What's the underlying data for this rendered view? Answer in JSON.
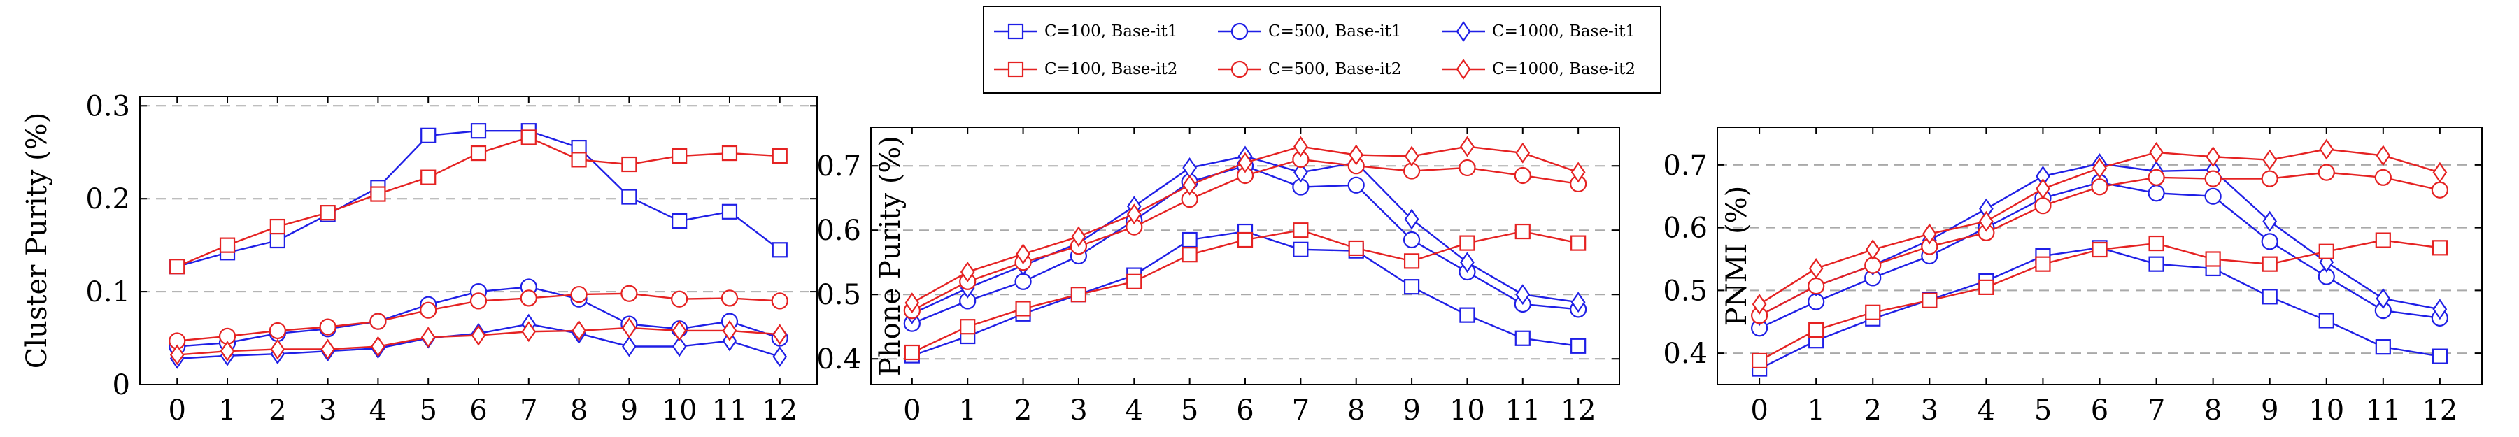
{
  "colors": {
    "blue": "#1f1fe6",
    "red": "#e52222",
    "grid": "#a9a9a9"
  },
  "legend": [
    {
      "label": "C=100, Base-it1",
      "color": "blue",
      "marker": "square"
    },
    {
      "label": "C=500, Base-it1",
      "color": "blue",
      "marker": "circle"
    },
    {
      "label": "C=1000, Base-it1",
      "color": "blue",
      "marker": "diamond"
    },
    {
      "label": "C=100, Base-it2",
      "color": "red",
      "marker": "square"
    },
    {
      "label": "C=500, Base-it2",
      "color": "red",
      "marker": "circle"
    },
    {
      "label": "C=1000, Base-it2",
      "color": "red",
      "marker": "diamond"
    }
  ],
  "chart_data": [
    {
      "type": "line",
      "ylabel": "Cluster Purity (%)",
      "xlabel": "",
      "x": [
        0,
        1,
        2,
        3,
        4,
        5,
        6,
        7,
        8,
        9,
        10,
        11,
        12
      ],
      "ylim": [
        0,
        0.31
      ],
      "yticks": [
        0,
        0.1,
        0.2,
        0.3
      ],
      "ytick_labels": [
        "0",
        "0.1",
        "0.2",
        "0.3"
      ],
      "grid": "horizontal-dashed",
      "series": [
        {
          "name": "C=100, Base-it1",
          "color": "blue",
          "marker": "square",
          "values": [
            0.127,
            0.142,
            0.155,
            0.183,
            0.212,
            0.268,
            0.273,
            0.273,
            0.255,
            0.202,
            0.176,
            0.186,
            0.145
          ]
        },
        {
          "name": "C=500, Base-it1",
          "color": "blue",
          "marker": "circle",
          "values": [
            0.041,
            0.045,
            0.055,
            0.06,
            0.068,
            0.086,
            0.1,
            0.105,
            0.092,
            0.065,
            0.06,
            0.068,
            0.05
          ]
        },
        {
          "name": "C=1000, Base-it1",
          "color": "blue",
          "marker": "diamond",
          "values": [
            0.028,
            0.031,
            0.033,
            0.036,
            0.039,
            0.05,
            0.055,
            0.065,
            0.055,
            0.041,
            0.041,
            0.047,
            0.03
          ]
        },
        {
          "name": "C=100, Base-it2",
          "color": "red",
          "marker": "square",
          "values": [
            0.127,
            0.15,
            0.17,
            0.185,
            0.205,
            0.223,
            0.249,
            0.266,
            0.242,
            0.237,
            0.246,
            0.249,
            0.246
          ]
        },
        {
          "name": "C=500, Base-it2",
          "color": "red",
          "marker": "circle",
          "values": [
            0.047,
            0.052,
            0.058,
            0.062,
            0.068,
            0.08,
            0.09,
            0.093,
            0.097,
            0.098,
            0.092,
            0.093,
            0.09
          ]
        },
        {
          "name": "C=1000, Base-it2",
          "color": "red",
          "marker": "diamond",
          "values": [
            0.032,
            0.036,
            0.038,
            0.038,
            0.041,
            0.051,
            0.053,
            0.057,
            0.058,
            0.061,
            0.058,
            0.058,
            0.054
          ]
        }
      ]
    },
    {
      "type": "line",
      "ylabel": "Phone Purity (%)",
      "xlabel": "",
      "x": [
        0,
        1,
        2,
        3,
        4,
        5,
        6,
        7,
        8,
        9,
        10,
        11,
        12
      ],
      "ylim": [
        0.36,
        0.76
      ],
      "yticks": [
        0.4,
        0.5,
        0.6,
        0.7
      ],
      "ytick_labels": [
        "0.4",
        "0.5",
        "0.6",
        "0.7"
      ],
      "grid": "horizontal-dashed",
      "series": [
        {
          "name": "C=100, Base-it1",
          "color": "blue",
          "marker": "square",
          "values": [
            0.405,
            0.435,
            0.47,
            0.5,
            0.53,
            0.585,
            0.598,
            0.57,
            0.568,
            0.512,
            0.468,
            0.432,
            0.42
          ]
        },
        {
          "name": "C=500, Base-it1",
          "color": "blue",
          "marker": "circle",
          "values": [
            0.455,
            0.49,
            0.52,
            0.56,
            0.615,
            0.675,
            0.7,
            0.667,
            0.67,
            0.585,
            0.535,
            0.485,
            0.477
          ]
        },
        {
          "name": "C=1000, Base-it1",
          "color": "blue",
          "marker": "diamond",
          "values": [
            0.47,
            0.51,
            0.545,
            0.58,
            0.637,
            0.697,
            0.715,
            0.69,
            0.705,
            0.617,
            0.55,
            0.5,
            0.488
          ]
        },
        {
          "name": "C=100, Base-it2",
          "color": "red",
          "marker": "square",
          "values": [
            0.41,
            0.45,
            0.478,
            0.5,
            0.52,
            0.562,
            0.585,
            0.6,
            0.572,
            0.552,
            0.58,
            0.598,
            0.58
          ]
        },
        {
          "name": "C=500, Base-it2",
          "color": "red",
          "marker": "circle",
          "values": [
            0.475,
            0.52,
            0.55,
            0.575,
            0.605,
            0.648,
            0.685,
            0.71,
            0.7,
            0.692,
            0.697,
            0.685,
            0.672
          ]
        },
        {
          "name": "C=1000, Base-it2",
          "color": "red",
          "marker": "diamond",
          "values": [
            0.487,
            0.535,
            0.563,
            0.59,
            0.625,
            0.67,
            0.705,
            0.73,
            0.717,
            0.715,
            0.73,
            0.72,
            0.69
          ]
        }
      ]
    },
    {
      "type": "line",
      "ylabel": "PNMI (%)",
      "xlabel": "",
      "x": [
        0,
        1,
        2,
        3,
        4,
        5,
        6,
        7,
        8,
        9,
        10,
        11,
        12
      ],
      "ylim": [
        0.35,
        0.76
      ],
      "yticks": [
        0.4,
        0.5,
        0.6,
        0.7
      ],
      "ytick_labels": [
        "0.4",
        "0.5",
        "0.6",
        "0.7"
      ],
      "grid": "horizontal-dashed",
      "series": [
        {
          "name": "C=100, Base-it1",
          "color": "blue",
          "marker": "square",
          "values": [
            0.375,
            0.42,
            0.455,
            0.485,
            0.515,
            0.555,
            0.568,
            0.542,
            0.535,
            0.49,
            0.452,
            0.41,
            0.395
          ]
        },
        {
          "name": "C=500, Base-it1",
          "color": "blue",
          "marker": "circle",
          "values": [
            0.44,
            0.482,
            0.52,
            0.555,
            0.6,
            0.647,
            0.672,
            0.655,
            0.65,
            0.578,
            0.522,
            0.468,
            0.456
          ]
        },
        {
          "name": "C=1000, Base-it1",
          "color": "blue",
          "marker": "diamond",
          "values": [
            0.46,
            0.507,
            0.54,
            0.58,
            0.63,
            0.682,
            0.702,
            0.69,
            0.692,
            0.61,
            0.545,
            0.487,
            0.47
          ]
        },
        {
          "name": "C=100, Base-it2",
          "color": "red",
          "marker": "square",
          "values": [
            0.388,
            0.437,
            0.465,
            0.484,
            0.505,
            0.542,
            0.565,
            0.575,
            0.55,
            0.542,
            0.562,
            0.58,
            0.568
          ]
        },
        {
          "name": "C=500, Base-it2",
          "color": "red",
          "marker": "circle",
          "values": [
            0.46,
            0.507,
            0.54,
            0.57,
            0.592,
            0.635,
            0.665,
            0.68,
            0.678,
            0.678,
            0.688,
            0.68,
            0.66
          ]
        },
        {
          "name": "C=1000, Base-it2",
          "color": "red",
          "marker": "diamond",
          "values": [
            0.478,
            0.535,
            0.565,
            0.59,
            0.61,
            0.662,
            0.695,
            0.72,
            0.713,
            0.708,
            0.725,
            0.715,
            0.688
          ]
        }
      ]
    }
  ]
}
